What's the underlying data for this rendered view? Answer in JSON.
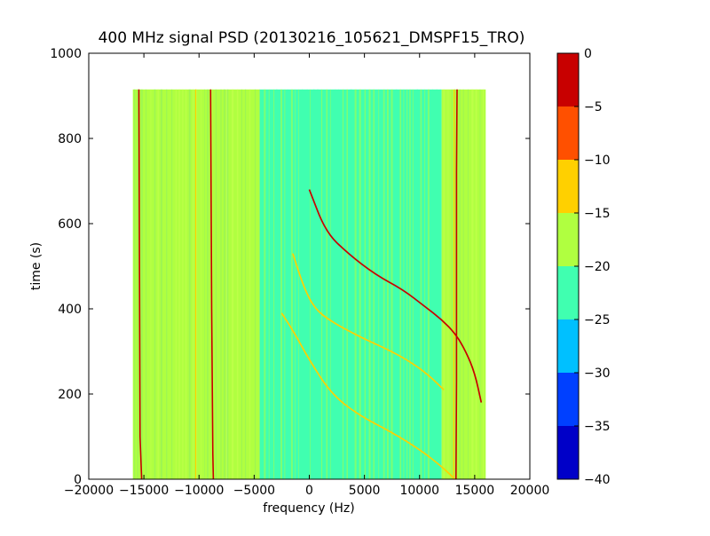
{
  "chart_data": {
    "type": "heatmap",
    "title": "400 MHz signal PSD (20130216_105621_DMSPF15_TRO)",
    "xlabel": "frequency (Hz)",
    "ylabel": "time (s)",
    "xlim": [
      -20000,
      20000
    ],
    "ylim": [
      0,
      1000
    ],
    "xticks": [
      -20000,
      -15000,
      -10000,
      -5000,
      0,
      5000,
      10000,
      15000,
      20000
    ],
    "xtick_labels": [
      "−20000",
      "−15000",
      "−10000",
      "−5000",
      "0",
      "5000",
      "10000",
      "15000",
      "20000"
    ],
    "yticks": [
      0,
      200,
      400,
      600,
      800,
      1000
    ],
    "ytick_labels": [
      "0",
      "200",
      "400",
      "600",
      "800",
      "1000"
    ],
    "data_extent": {
      "x": [
        -16000,
        16000
      ],
      "y": [
        0,
        915
      ]
    },
    "colorbar": {
      "range": [
        -40,
        0
      ],
      "levels": [
        -40,
        -35,
        -30,
        -25,
        -20,
        -15,
        -10,
        -5,
        0
      ],
      "tick_labels": [
        "−40",
        "−35",
        "−30",
        "−25",
        "−20",
        "−15",
        "−10",
        "−5",
        "0"
      ],
      "colors": [
        "#0000c8",
        "#0040ff",
        "#00c0ff",
        "#40ffb0",
        "#b0ff40",
        "#ffd000",
        "#ff5000",
        "#c80000"
      ]
    },
    "background_bands": [
      {
        "x": [
          -16000,
          -7500
        ],
        "level": -17.5
      },
      {
        "x": [
          -7500,
          -4500
        ],
        "level": -19.5
      },
      {
        "x": [
          -4500,
          12000
        ],
        "level": -22.5
      },
      {
        "x": [
          12000,
          16000
        ],
        "level": -17.5
      }
    ],
    "vertical_lines": [
      {
        "points": [
          [
            -15200,
            0
          ],
          [
            -15350,
            100
          ],
          [
            -15400,
            480
          ],
          [
            -15450,
            915
          ]
        ],
        "level": -2.5
      },
      {
        "points": [
          [
            -8700,
            0
          ],
          [
            -8750,
            60
          ],
          [
            -8850,
            400
          ],
          [
            -8950,
            915
          ]
        ],
        "level": -2.5
      },
      {
        "points": [
          [
            -10300,
            0
          ],
          [
            -10300,
            915
          ]
        ],
        "level": -12.5
      },
      {
        "points": [
          [
            13300,
            0
          ],
          [
            13350,
            230
          ],
          [
            13350,
            720
          ],
          [
            13400,
            915
          ]
        ],
        "level": -2.5
      },
      {
        "points": [
          [
            13100,
            0
          ],
          [
            13150,
            915
          ]
        ],
        "level": -12.5
      }
    ],
    "doppler_curves": [
      {
        "level": -2.5,
        "points": [
          [
            0,
            680
          ],
          [
            1500,
            580
          ],
          [
            3500,
            530
          ],
          [
            6000,
            480
          ],
          [
            8500,
            445
          ],
          [
            10500,
            405
          ],
          [
            12000,
            375
          ],
          [
            13300,
            340
          ],
          [
            14200,
            300
          ],
          [
            15000,
            250
          ],
          [
            15600,
            180
          ]
        ]
      },
      {
        "level": -12.5,
        "points": [
          [
            -1500,
            530
          ],
          [
            -500,
            450
          ],
          [
            500,
            400
          ],
          [
            2000,
            370
          ],
          [
            4500,
            335
          ],
          [
            7500,
            300
          ],
          [
            9500,
            270
          ],
          [
            11000,
            240
          ],
          [
            12200,
            210
          ]
        ]
      },
      {
        "level": -12.5,
        "points": [
          [
            -2500,
            390
          ],
          [
            -1500,
            350
          ],
          [
            0,
            280
          ],
          [
            2000,
            200
          ],
          [
            4500,
            150
          ],
          [
            7500,
            110
          ],
          [
            10000,
            70
          ],
          [
            12000,
            30
          ],
          [
            13200,
            0
          ]
        ]
      }
    ]
  }
}
